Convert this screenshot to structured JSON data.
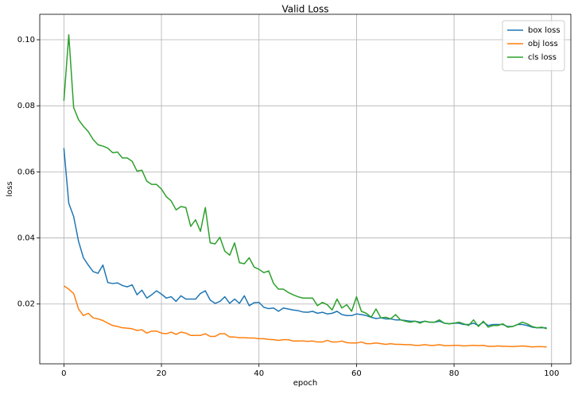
{
  "chart_data": {
    "type": "line",
    "title": "Valid Loss",
    "x_label": "epoch",
    "y_label": "loss",
    "x": [
      0,
      1,
      2,
      3,
      4,
      5,
      6,
      7,
      8,
      9,
      10,
      11,
      12,
      13,
      14,
      15,
      16,
      17,
      18,
      19,
      20,
      21,
      22,
      23,
      24,
      25,
      26,
      27,
      28,
      29,
      30,
      31,
      32,
      33,
      34,
      35,
      36,
      37,
      38,
      39,
      40,
      41,
      42,
      43,
      44,
      45,
      46,
      47,
      48,
      49,
      50,
      51,
      52,
      53,
      54,
      55,
      56,
      57,
      58,
      59,
      60,
      61,
      62,
      63,
      64,
      65,
      66,
      67,
      68,
      69,
      70,
      71,
      72,
      73,
      74,
      75,
      76,
      77,
      78,
      79,
      80,
      81,
      82,
      83,
      84,
      85,
      86,
      87,
      88,
      89,
      90,
      91,
      92,
      93,
      94,
      95,
      96,
      97,
      98,
      99
    ],
    "series": [
      {
        "name": "box loss",
        "color": "#1f77b4",
        "values": [
          0.0672,
          0.0505,
          0.0465,
          0.039,
          0.034,
          0.0318,
          0.0298,
          0.0293,
          0.0318,
          0.0265,
          0.0262,
          0.0264,
          0.0256,
          0.0252,
          0.0258,
          0.0228,
          0.0242,
          0.0218,
          0.0228,
          0.024,
          0.023,
          0.0218,
          0.0222,
          0.0208,
          0.0225,
          0.0215,
          0.0215,
          0.0215,
          0.0232,
          0.024,
          0.0212,
          0.0202,
          0.0208,
          0.0222,
          0.0202,
          0.0215,
          0.0202,
          0.0225,
          0.0195,
          0.0204,
          0.0205,
          0.019,
          0.0186,
          0.0188,
          0.0178,
          0.0188,
          0.0185,
          0.0182,
          0.018,
          0.0176,
          0.0175,
          0.0178,
          0.0172,
          0.0175,
          0.017,
          0.0172,
          0.0178,
          0.0168,
          0.0165,
          0.0165,
          0.017,
          0.0168,
          0.0165,
          0.016,
          0.0156,
          0.0158,
          0.0155,
          0.0155,
          0.0152,
          0.0152,
          0.015,
          0.0148,
          0.0148,
          0.0145,
          0.0148,
          0.0145,
          0.0145,
          0.0148,
          0.0142,
          0.014,
          0.0142,
          0.0142,
          0.0138,
          0.0138,
          0.0142,
          0.0135,
          0.0145,
          0.0135,
          0.0138,
          0.0138,
          0.0138,
          0.0132,
          0.0132,
          0.0138,
          0.0138,
          0.0135,
          0.013,
          0.0128,
          0.0128,
          0.0128
        ]
      },
      {
        "name": "obj loss",
        "color": "#ff7f0e",
        "values": [
          0.0255,
          0.0245,
          0.0232,
          0.0185,
          0.0165,
          0.0172,
          0.0158,
          0.0155,
          0.015,
          0.0142,
          0.0135,
          0.0132,
          0.0128,
          0.0127,
          0.0125,
          0.012,
          0.0122,
          0.0112,
          0.0118,
          0.0118,
          0.0112,
          0.011,
          0.0115,
          0.0108,
          0.0115,
          0.0112,
          0.0105,
          0.0105,
          0.0105,
          0.011,
          0.0102,
          0.0102,
          0.011,
          0.011,
          0.01,
          0.01,
          0.0098,
          0.0098,
          0.0097,
          0.0097,
          0.0095,
          0.0095,
          0.0093,
          0.0092,
          0.009,
          0.0092,
          0.0092,
          0.0088,
          0.0088,
          0.0088,
          0.0087,
          0.0088,
          0.0085,
          0.0085,
          0.009,
          0.0085,
          0.0085,
          0.0088,
          0.0083,
          0.0082,
          0.0082,
          0.0085,
          0.008,
          0.008,
          0.0082,
          0.008,
          0.0078,
          0.008,
          0.0078,
          0.0078,
          0.0077,
          0.0077,
          0.0075,
          0.0075,
          0.0077,
          0.0075,
          0.0075,
          0.0077,
          0.0074,
          0.0074,
          0.0075,
          0.0075,
          0.0073,
          0.0074,
          0.0075,
          0.0074,
          0.0075,
          0.0072,
          0.0072,
          0.0073,
          0.0072,
          0.0072,
          0.0071,
          0.0072,
          0.0073,
          0.0072,
          0.007,
          0.0071,
          0.0071,
          0.007
        ]
      },
      {
        "name": "cls loss",
        "color": "#2ca02c",
        "values": [
          0.0815,
          0.1015,
          0.0795,
          0.0758,
          0.0738,
          0.0722,
          0.0698,
          0.0682,
          0.0678,
          0.0672,
          0.0658,
          0.066,
          0.0642,
          0.0642,
          0.0632,
          0.0602,
          0.0605,
          0.0572,
          0.0562,
          0.0562,
          0.0548,
          0.0525,
          0.0512,
          0.0485,
          0.0495,
          0.0492,
          0.0435,
          0.0455,
          0.042,
          0.0492,
          0.0385,
          0.0382,
          0.0402,
          0.036,
          0.0348,
          0.0385,
          0.0325,
          0.0322,
          0.034,
          0.0312,
          0.0305,
          0.0295,
          0.03,
          0.0262,
          0.0245,
          0.0245,
          0.0235,
          0.0228,
          0.0222,
          0.0218,
          0.0218,
          0.0218,
          0.0195,
          0.0205,
          0.0198,
          0.0182,
          0.0215,
          0.0188,
          0.0198,
          0.0178,
          0.0222,
          0.0178,
          0.0172,
          0.016,
          0.0185,
          0.0158,
          0.016,
          0.0155,
          0.0168,
          0.0152,
          0.0148,
          0.0145,
          0.0148,
          0.0142,
          0.0148,
          0.0145,
          0.0145,
          0.0152,
          0.0142,
          0.014,
          0.0142,
          0.0145,
          0.014,
          0.0135,
          0.0152,
          0.0132,
          0.0148,
          0.013,
          0.0135,
          0.0135,
          0.014,
          0.013,
          0.0132,
          0.0138,
          0.0145,
          0.014,
          0.0132,
          0.0128,
          0.013,
          0.0125
        ]
      }
    ],
    "xlim": [
      -4.95,
      103.95
    ],
    "ylim": [
      0.0019,
      0.1077
    ],
    "xticks": [
      0,
      20,
      40,
      60,
      80,
      100
    ],
    "yticks": [
      0.02,
      0.04,
      0.06,
      0.08,
      {
        "value": 0.1,
        "label": "0.10"
      }
    ],
    "grid": true,
    "legend": "upper right"
  }
}
